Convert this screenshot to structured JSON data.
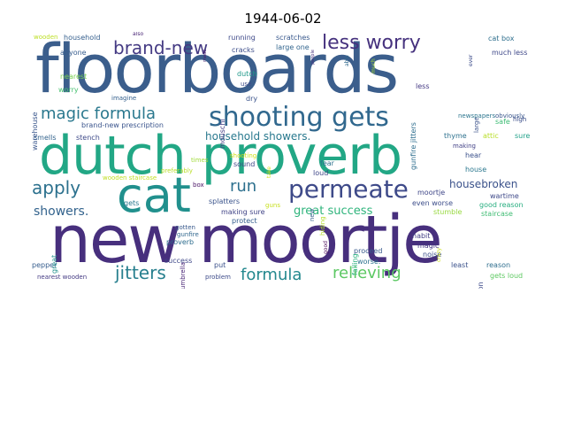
{
  "title": "1944-06-02",
  "words": [
    {
      "text": "floorboards",
      "color": "#3b5e8c"
    },
    {
      "text": "dutch proverb",
      "color": "#22a785"
    },
    {
      "text": "new moortje",
      "color": "#472f7d"
    },
    {
      "text": "cat",
      "color": "#21908d"
    },
    {
      "text": "shooting gets",
      "color": "#31688e"
    },
    {
      "text": "permeate",
      "color": "#3e4a89"
    },
    {
      "text": "less worry",
      "color": "#46327e"
    },
    {
      "text": "brand-new",
      "color": "#443a83"
    },
    {
      "text": "magic formula",
      "color": "#2a788e"
    },
    {
      "text": "apply",
      "color": "#2c718e"
    },
    {
      "text": "run",
      "color": "#2d708e"
    },
    {
      "text": "jitters",
      "color": "#277f8e"
    },
    {
      "text": "formula",
      "color": "#23888e"
    },
    {
      "text": "relieving",
      "color": "#5cc863"
    },
    {
      "text": "great success",
      "color": "#2fb47c"
    },
    {
      "text": "showers.",
      "color": "#33638d"
    },
    {
      "text": "household showers.",
      "color": "#29798e"
    },
    {
      "text": "housebroken",
      "color": "#3b528b"
    },
    {
      "text": "wooden",
      "color": "#bddf26"
    },
    {
      "text": "household",
      "color": "#355f8d"
    },
    {
      "text": "also",
      "color": "#482475"
    },
    {
      "text": "running",
      "color": "#3e4989"
    },
    {
      "text": "scratches",
      "color": "#38588c"
    },
    {
      "text": "cat box",
      "color": "#2e6f8e"
    },
    {
      "text": "anyone",
      "color": "#365c8d"
    },
    {
      "text": "cracks",
      "color": "#3d4e8a"
    },
    {
      "text": "large one",
      "color": "#32658e"
    },
    {
      "text": "much less",
      "color": "#3f4889"
    },
    {
      "text": "nearest",
      "color": "#7ad151"
    },
    {
      "text": "worry",
      "color": "#46c06f"
    },
    {
      "text": "imagine",
      "color": "#35608d"
    },
    {
      "text": "dutch",
      "color": "#1f998a"
    },
    {
      "text": "use",
      "color": "#3e4c8a"
    },
    {
      "text": "dry",
      "color": "#3a538b"
    },
    {
      "text": "less",
      "color": "#443983"
    },
    {
      "text": "newspapers",
      "color": "#2b758e"
    },
    {
      "text": "obviously",
      "color": "#39568c"
    },
    {
      "text": "safe",
      "color": "#3dbc74"
    },
    {
      "text": "high",
      "color": "#3c4f8a"
    },
    {
      "text": "smells",
      "color": "#33638d"
    },
    {
      "text": "stench",
      "color": "#3e4a89"
    },
    {
      "text": "brand-new prescription",
      "color": "#3a548c"
    },
    {
      "text": "thyme",
      "color": "#2d718e"
    },
    {
      "text": "attic",
      "color": "#b8de29"
    },
    {
      "text": "sure",
      "color": "#1fa088"
    },
    {
      "text": "times",
      "color": "#a0da39"
    },
    {
      "text": "shooting",
      "color": "#d2e21b"
    },
    {
      "text": "hear",
      "color": "#3b518b"
    },
    {
      "text": "house",
      "color": "#2a778e"
    },
    {
      "text": "making",
      "color": "#424186"
    },
    {
      "text": "wooden staircase",
      "color": "#c2df23"
    },
    {
      "text": "preferably",
      "color": "#bade28"
    },
    {
      "text": "box",
      "color": "#471063"
    },
    {
      "text": "sound",
      "color": "#404688"
    },
    {
      "text": "fear",
      "color": "#2c728e"
    },
    {
      "text": "loud",
      "color": "#3f4788"
    },
    {
      "text": "moortje",
      "color": "#3f4788"
    },
    {
      "text": "wartime",
      "color": "#3e4989"
    },
    {
      "text": "gets",
      "color": "#2a788e"
    },
    {
      "text": "splatters",
      "color": "#3a538b"
    },
    {
      "text": "guns",
      "color": "#c8e020"
    },
    {
      "text": "making sure",
      "color": "#414487"
    },
    {
      "text": "protect",
      "color": "#355e8d"
    },
    {
      "text": "even worse",
      "color": "#3d4e8a"
    },
    {
      "text": "good reason",
      "color": "#28ae80"
    },
    {
      "text": "stumble",
      "color": "#97d83f"
    },
    {
      "text": "staircase",
      "color": "#3fbc73"
    },
    {
      "text": "gotten",
      "color": "#38598c"
    },
    {
      "text": "gunfire",
      "color": "#31678e"
    },
    {
      "text": "habit",
      "color": "#433e85"
    },
    {
      "text": "magic",
      "color": "#453781"
    },
    {
      "text": "noise",
      "color": "#3c4f8a"
    },
    {
      "text": "proverb",
      "color": "#2e6d8e"
    },
    {
      "text": "proceed",
      "color": "#38598c"
    },
    {
      "text": "worse.",
      "color": "#2c718e"
    },
    {
      "text": "least",
      "color": "#3b528b"
    },
    {
      "text": "pepper",
      "color": "#365d8d"
    },
    {
      "text": "success",
      "color": "#3f4889"
    },
    {
      "text": "put",
      "color": "#3b518b"
    },
    {
      "text": "reason",
      "color": "#2e6e8e"
    },
    {
      "text": "nearest wooden",
      "color": "#443a83"
    },
    {
      "text": "problem",
      "color": "#3e4c8a"
    },
    {
      "text": "gets loud",
      "color": "#5ec962"
    },
    {
      "text": "warehouse",
      "color": "#39568c"
    },
    {
      "text": "mouschi",
      "color": "#433d84"
    },
    {
      "text": "gunfire jitters",
      "color": "#2e6e8e"
    },
    {
      "text": "hiding",
      "color": "#b5de2b"
    },
    {
      "text": "falling",
      "color": "#29af7f"
    },
    {
      "text": "great",
      "color": "#21918c"
    },
    {
      "text": "umbrella",
      "color": "#482576"
    },
    {
      "text": "prescription",
      "color": "#3e4a89"
    },
    {
      "text": "able",
      "color": "#30698e"
    },
    {
      "text": "much",
      "color": "#a8db34"
    },
    {
      "text": "ever",
      "color": "#3d4d8a"
    },
    {
      "text": "large",
      "color": "#3b528b"
    },
    {
      "text": "new",
      "color": "#355f8d"
    },
    {
      "text": "good",
      "color": "#440154"
    },
    {
      "text": "take",
      "color": "#d5e21a"
    },
    {
      "text": "crazy",
      "color": "#cde11d"
    },
    {
      "text": "people",
      "color": "#46307e"
    },
    {
      "text": "made",
      "color": "#481c6e"
    }
  ]
}
